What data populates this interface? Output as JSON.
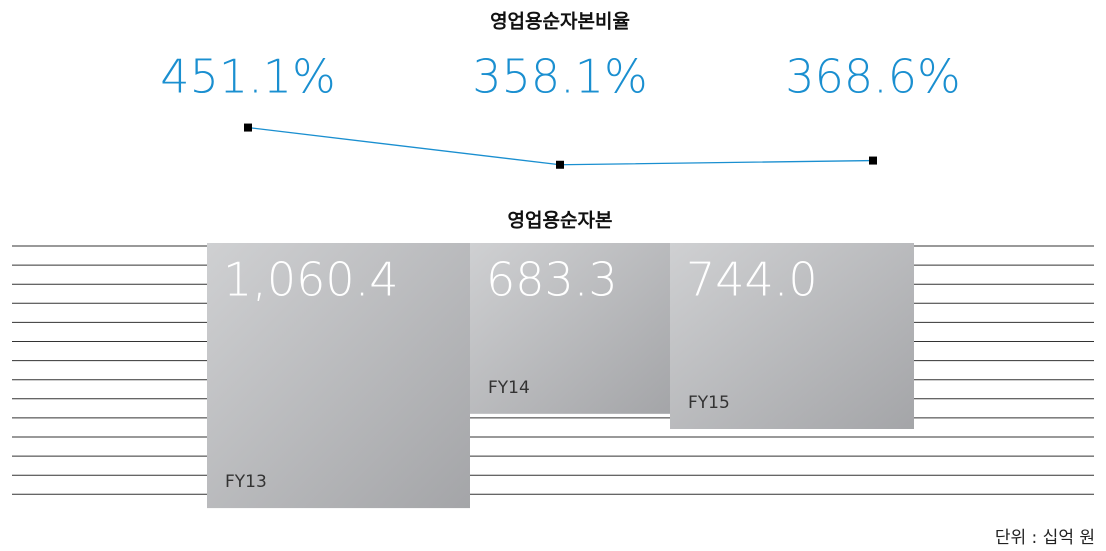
{
  "chart_data": [
    {
      "type": "line",
      "title": "영업용순자본비율",
      "values": [
        451.1,
        358.1,
        368.6
      ],
      "value_labels": [
        "451.1%",
        "358.1%",
        "368.6%"
      ],
      "color": "#1a8fd0",
      "ylim": [
        300,
        500
      ]
    },
    {
      "type": "bar",
      "title": "영업용순자본",
      "categories": [
        "FY13",
        "FY14",
        "FY15"
      ],
      "values": [
        1060.4,
        683.3,
        744.0
      ],
      "value_labels": [
        "1,060.4",
        "683.3",
        "744.0"
      ],
      "ylim": [
        0,
        1100
      ]
    }
  ],
  "note": "단위 : 십억 원"
}
